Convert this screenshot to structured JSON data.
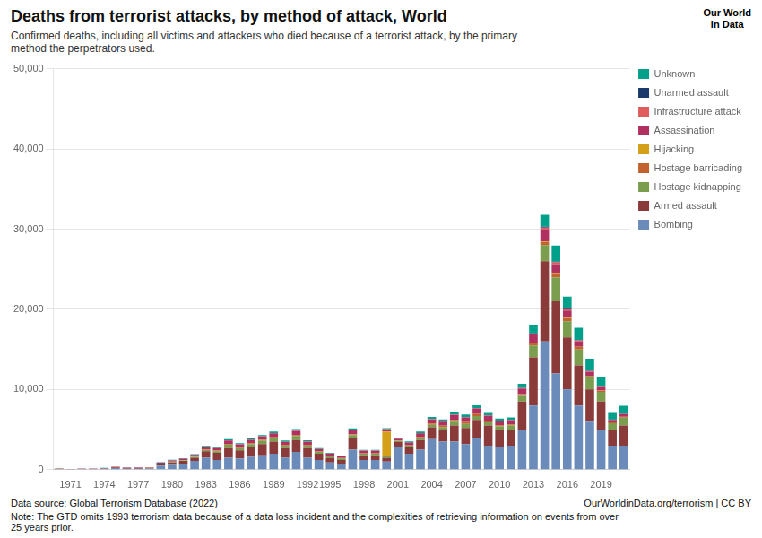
{
  "chart_data": {
    "type": "bar",
    "stacked": true,
    "title": "Deaths from terrorist attacks, by method of attack, World",
    "subtitle": "Confirmed deaths, including all victims and attackers who died because of a terrorist attack, by the primary\nmethod the perpetrators used.",
    "annotations": [
      "Data source: Global Terrorism Database (2022)",
      "OurWorldinData.org/terrorism | CC BY",
      "Note: The GTD omits 1993 terrorism data because of a data loss incident and the complexities of retrieving information on events from over\n25 years prior.",
      "Our World",
      "in Data"
    ],
    "categories": [
      null,
      "1971",
      null,
      null,
      "1974",
      null,
      null,
      "1977",
      null,
      null,
      "1980",
      null,
      null,
      "1983",
      null,
      null,
      "1986",
      null,
      null,
      "1989",
      null,
      null,
      "1992",
      null,
      "1995",
      null,
      null,
      "1998",
      null,
      null,
      "2001",
      null,
      null,
      "2004",
      null,
      null,
      "2007",
      null,
      null,
      "2010",
      null,
      null,
      "2013",
      null,
      null,
      "2016",
      null,
      null,
      "2019",
      null,
      null
    ],
    "series": [
      {
        "name": "Bombing",
        "color": "#6b8cba",
        "values": [
          100,
          50,
          80,
          80,
          120,
          200,
          130,
          120,
          140,
          500,
          600,
          700,
          1100,
          1500,
          1200,
          1500,
          1400,
          1600,
          1800,
          2000,
          1500,
          2200,
          1500,
          1200,
          900,
          700,
          2500,
          1200,
          1200,
          1000,
          2800,
          2000,
          2500,
          3800,
          3500,
          3500,
          3200,
          4000,
          3000,
          2800,
          3000,
          5000,
          8000,
          16000,
          12000,
          10000,
          8000,
          6000,
          5000,
          3000,
          3000
        ]
      },
      {
        "name": "Armed assault",
        "color": "#8b3a3a",
        "values": [
          30,
          20,
          30,
          30,
          50,
          80,
          60,
          70,
          80,
          200,
          300,
          400,
          400,
          800,
          900,
          1200,
          1000,
          1200,
          1400,
          1500,
          1200,
          1500,
          1200,
          800,
          600,
          500,
          1500,
          600,
          600,
          500,
          700,
          800,
          1200,
          1500,
          1500,
          2000,
          2000,
          2200,
          2500,
          2200,
          2000,
          3500,
          6000,
          10000,
          9000,
          6500,
          5000,
          4000,
          3500,
          2000,
          2500
        ]
      },
      {
        "name": "Hostage kidnapping",
        "color": "#7a9e4e",
        "values": [
          5,
          2,
          5,
          5,
          5,
          10,
          10,
          10,
          10,
          30,
          50,
          50,
          100,
          150,
          200,
          400,
          300,
          400,
          400,
          400,
          300,
          500,
          300,
          200,
          200,
          200,
          300,
          200,
          200,
          200,
          100,
          200,
          300,
          300,
          300,
          500,
          500,
          500,
          400,
          400,
          500,
          700,
          1500,
          2000,
          3000,
          2000,
          2000,
          1500,
          1200,
          800,
          1000
        ]
      },
      {
        "name": "Hostage barricading",
        "color": "#c4622d",
        "values": [
          2,
          1,
          2,
          2,
          2,
          5,
          5,
          5,
          5,
          10,
          20,
          20,
          30,
          50,
          50,
          100,
          80,
          100,
          100,
          100,
          80,
          100,
          80,
          50,
          50,
          50,
          100,
          50,
          50,
          50,
          30,
          50,
          100,
          150,
          150,
          200,
          200,
          200,
          200,
          150,
          150,
          200,
          300,
          400,
          400,
          400,
          300,
          200,
          150,
          100,
          100
        ]
      },
      {
        "name": "Hijacking",
        "color": "#d4a017",
        "values": [
          5,
          2,
          5,
          5,
          5,
          10,
          10,
          10,
          10,
          20,
          30,
          30,
          20,
          30,
          20,
          30,
          20,
          30,
          30,
          30,
          20,
          30,
          20,
          10,
          10,
          10,
          20,
          10,
          10,
          3000,
          30,
          10,
          20,
          30,
          30,
          30,
          30,
          30,
          30,
          30,
          30,
          30,
          50,
          100,
          50,
          50,
          30,
          20,
          20,
          10,
          10
        ]
      },
      {
        "name": "Assassination",
        "color": "#b03060",
        "values": [
          20,
          10,
          20,
          20,
          30,
          50,
          40,
          50,
          50,
          100,
          150,
          150,
          200,
          300,
          300,
          400,
          350,
          400,
          400,
          500,
          350,
          500,
          400,
          300,
          250,
          200,
          500,
          300,
          300,
          300,
          200,
          300,
          400,
          500,
          500,
          600,
          600,
          700,
          600,
          500,
          500,
          700,
          1000,
          1500,
          1200,
          900,
          700,
          500,
          400,
          300,
          300
        ]
      },
      {
        "name": "Infrastructure attack",
        "color": "#e05c5c",
        "values": [
          2,
          1,
          2,
          2,
          2,
          5,
          5,
          5,
          5,
          10,
          10,
          10,
          10,
          20,
          20,
          30,
          20,
          30,
          30,
          30,
          20,
          30,
          20,
          10,
          10,
          10,
          20,
          10,
          10,
          10,
          10,
          10,
          20,
          30,
          30,
          30,
          30,
          30,
          30,
          30,
          30,
          50,
          100,
          200,
          200,
          150,
          100,
          80,
          60,
          40,
          40
        ]
      },
      {
        "name": "Unarmed assault",
        "color": "#1a3a6b",
        "values": [
          1,
          0,
          1,
          1,
          1,
          2,
          2,
          2,
          2,
          5,
          5,
          5,
          5,
          10,
          10,
          10,
          10,
          10,
          10,
          10,
          10,
          10,
          10,
          5,
          5,
          5,
          10,
          5,
          5,
          5,
          5,
          5,
          10,
          10,
          10,
          20,
          20,
          20,
          20,
          20,
          20,
          30,
          50,
          100,
          100,
          80,
          60,
          50,
          40,
          30,
          30
        ]
      },
      {
        "name": "Unknown",
        "color": "#00a08a",
        "values": [
          10,
          5,
          10,
          10,
          10,
          20,
          15,
          15,
          15,
          50,
          60,
          70,
          80,
          100,
          100,
          150,
          120,
          150,
          150,
          200,
          150,
          200,
          150,
          100,
          80,
          70,
          200,
          100,
          100,
          100,
          100,
          150,
          200,
          250,
          250,
          300,
          300,
          350,
          300,
          250,
          300,
          500,
          1000,
          1500,
          2000,
          1500,
          1500,
          1500,
          1200,
          800,
          1000
        ]
      }
    ],
    "ylim": [
      0,
      50000
    ],
    "yticks": [
      0,
      {
        "value": 10000,
        "label": "10,000"
      },
      {
        "value": 20000,
        "label": "20,000"
      },
      {
        "value": 30000,
        "label": "30,000"
      },
      {
        "value": 40000,
        "label": "40,000"
      },
      {
        "value": 50000,
        "label": "50,000"
      }
    ],
    "grid": "y",
    "legend": "upper right"
  }
}
